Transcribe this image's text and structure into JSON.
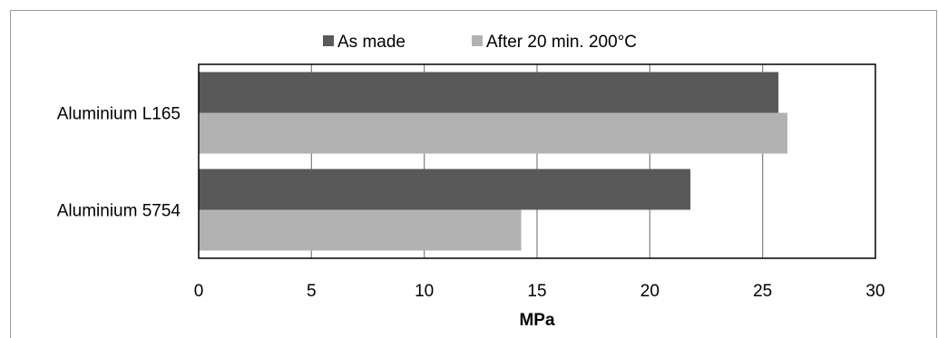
{
  "chart_data": {
    "type": "bar",
    "orientation": "horizontal",
    "categories": [
      "Aluminium L165",
      "Aluminium 5754"
    ],
    "series": [
      {
        "name": "As made",
        "values": [
          25.7,
          21.8
        ],
        "color": "#595959"
      },
      {
        "name": "After 20 min. 200°C",
        "values": [
          26.1,
          14.3
        ],
        "color": "#b2b2b2"
      }
    ],
    "xlabel": "MPa",
    "ylabel": "",
    "xlim": [
      0,
      30
    ],
    "xticks": [
      "0",
      "5",
      "10",
      "15",
      "20",
      "25",
      "30"
    ],
    "grid": "vertical",
    "legend_position": "top"
  }
}
